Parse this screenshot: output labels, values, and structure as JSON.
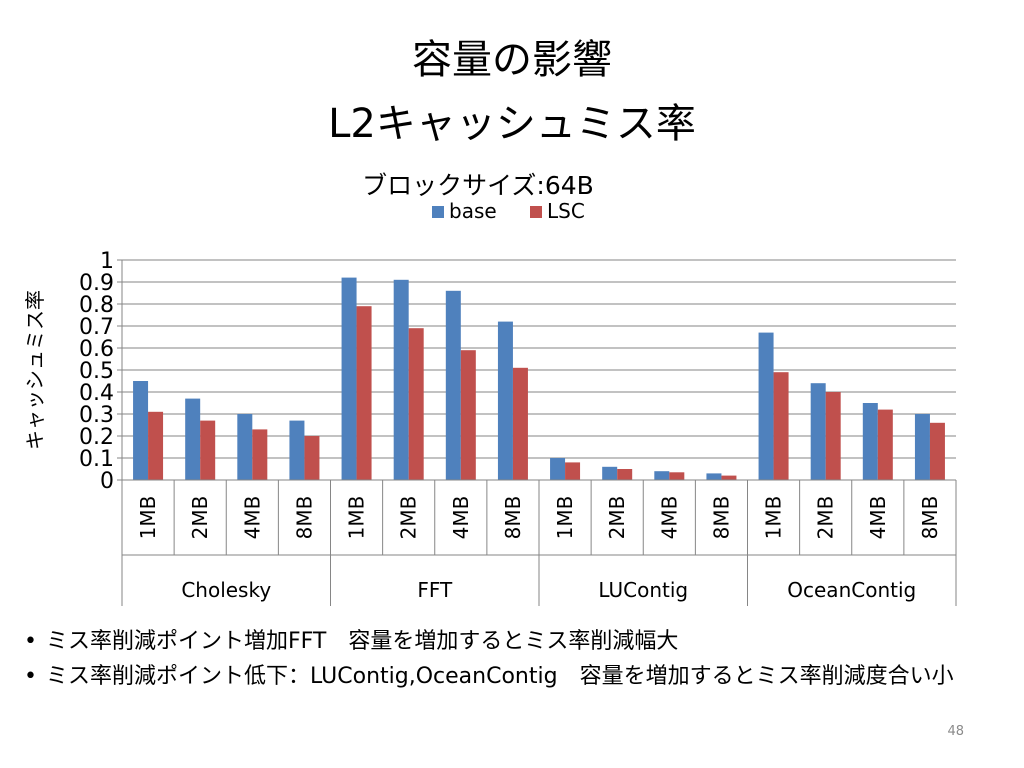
{
  "slide": {
    "title_line1": "容量の影響",
    "title_line2": "L2キャッシュミス率",
    "page_number": "48"
  },
  "bullets": [
    "ミス率削減ポイント増加FFT　容量を増加するとミス率削減幅大",
    "ミス率削減ポイント低下：LUContig,OceanContig　容量を増加するとミス率削減度合い小"
  ],
  "chart_data": {
    "type": "bar",
    "title": "ブロックサイズ:64B",
    "ylabel": "キャッシュミス率",
    "xlabel": "",
    "ylim": [
      0,
      1
    ],
    "yticks": [
      "0",
      "0.1",
      "0.2",
      "0.3",
      "0.4",
      "0.5",
      "0.6",
      "0.7",
      "0.8",
      "0.9",
      "1"
    ],
    "grid": true,
    "legend_position": "top",
    "groups": [
      {
        "name": "Cholesky",
        "categories": [
          "1MB",
          "2MB",
          "4MB",
          "8MB"
        ]
      },
      {
        "name": "FFT",
        "categories": [
          "1MB",
          "2MB",
          "4MB",
          "8MB"
        ]
      },
      {
        "name": "LUContig",
        "categories": [
          "1MB",
          "2MB",
          "4MB",
          "8MB"
        ]
      },
      {
        "name": "OceanContig",
        "categories": [
          "1MB",
          "2MB",
          "4MB",
          "8MB"
        ]
      }
    ],
    "series": [
      {
        "name": "base",
        "color": "#4f81bd",
        "values": [
          0.45,
          0.37,
          0.3,
          0.27,
          0.92,
          0.91,
          0.86,
          0.72,
          0.1,
          0.06,
          0.04,
          0.03,
          0.67,
          0.44,
          0.35,
          0.3
        ]
      },
      {
        "name": "LSC",
        "color": "#c0504d",
        "values": [
          0.31,
          0.27,
          0.23,
          0.2,
          0.79,
          0.69,
          0.59,
          0.51,
          0.08,
          0.05,
          0.035,
          0.02,
          0.49,
          0.4,
          0.32,
          0.26
        ]
      }
    ]
  }
}
